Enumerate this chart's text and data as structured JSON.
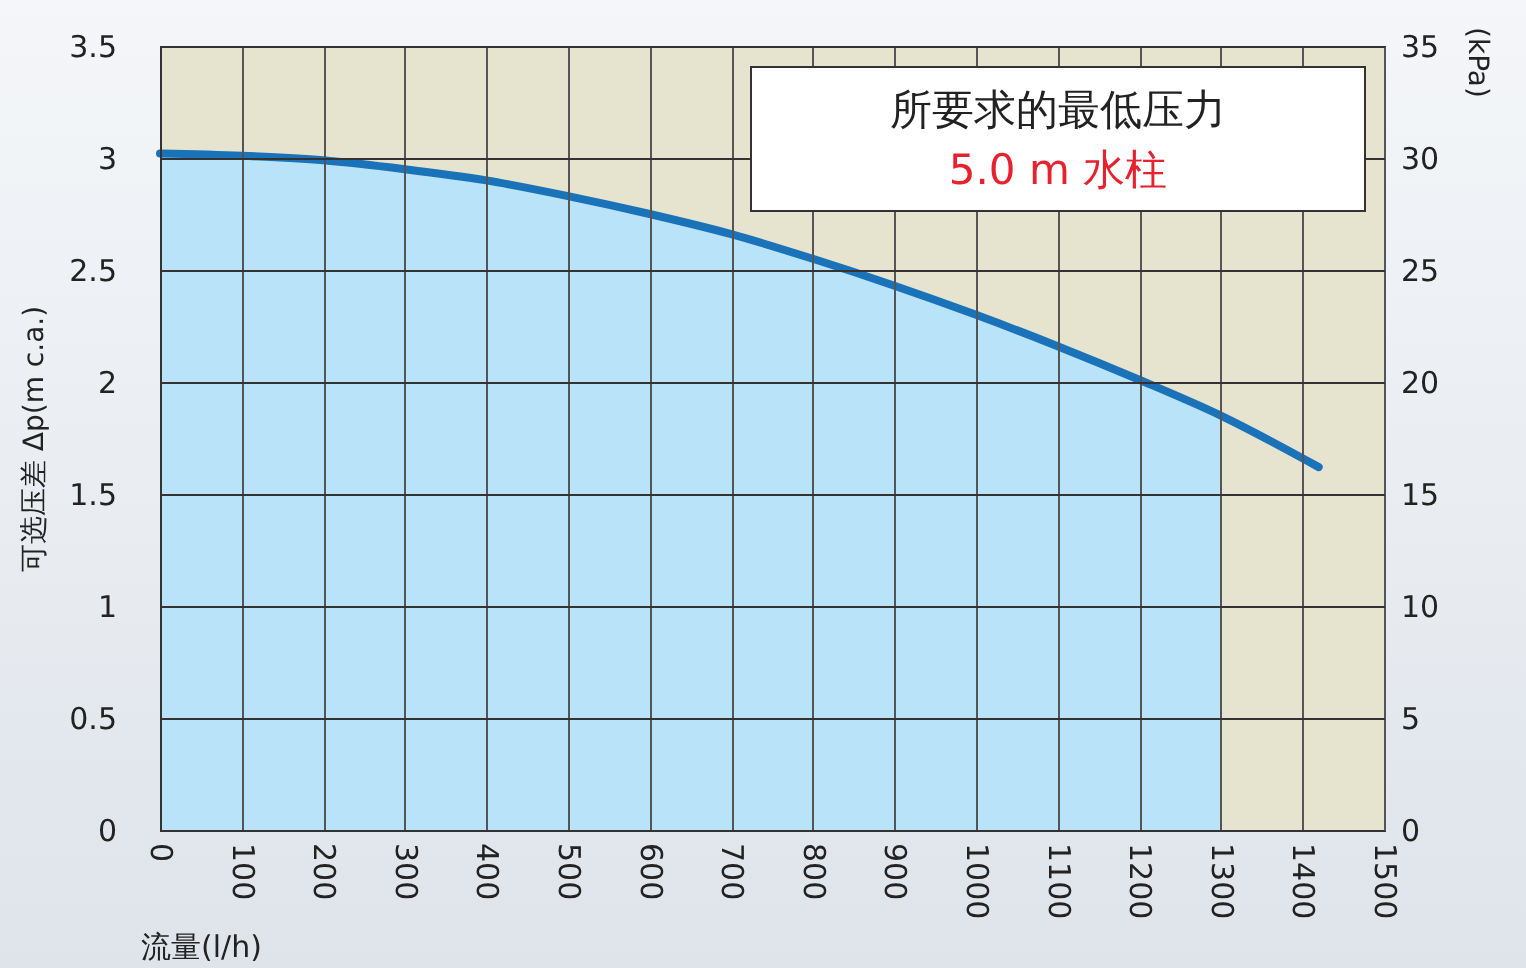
{
  "chart_data": {
    "type": "area",
    "ylabel": "可选压差 Δp(m c.a.)",
    "y2label": "(kPa)",
    "xlabel": "流量(l/h)",
    "annotations": [
      "所要求的最低压力",
      "5.0 m 水柱"
    ],
    "series": [
      {
        "color": "#b9e3f8",
        "x": [
          0,
          100,
          200,
          300,
          400,
          500,
          600,
          700,
          800,
          900,
          1000,
          1100,
          1200,
          1300
        ],
        "values": [
          3.02,
          3.01,
          2.99,
          2.95,
          2.9,
          2.83,
          2.75,
          2.66,
          2.55,
          2.43,
          2.3,
          2.16,
          2.01,
          1.85
        ]
      },
      {
        "type": "line",
        "color": "#1a73b9",
        "x": [
          0,
          100,
          200,
          300,
          400,
          500,
          600,
          700,
          800,
          900,
          1000,
          1100,
          1200,
          1300,
          1420
        ],
        "values": [
          3.02,
          3.01,
          2.99,
          2.95,
          2.9,
          2.83,
          2.75,
          2.66,
          2.55,
          2.43,
          2.3,
          2.16,
          2.01,
          1.85,
          1.62
        ]
      }
    ],
    "xlim": [
      0,
      1500
    ],
    "xticks": [
      0,
      100,
      200,
      300,
      400,
      500,
      600,
      700,
      800,
      900,
      1000,
      1100,
      1200,
      1300,
      1400,
      1500
    ],
    "ylim": [
      0,
      3.5
    ],
    "yticks": [
      0,
      0.5,
      1,
      1.5,
      2,
      2.5,
      3,
      3.5
    ],
    "y2lim": [
      0,
      35
    ],
    "y2ticks": [
      0,
      5,
      10,
      15,
      20,
      25,
      30,
      35
    ],
    "grid": true
  }
}
